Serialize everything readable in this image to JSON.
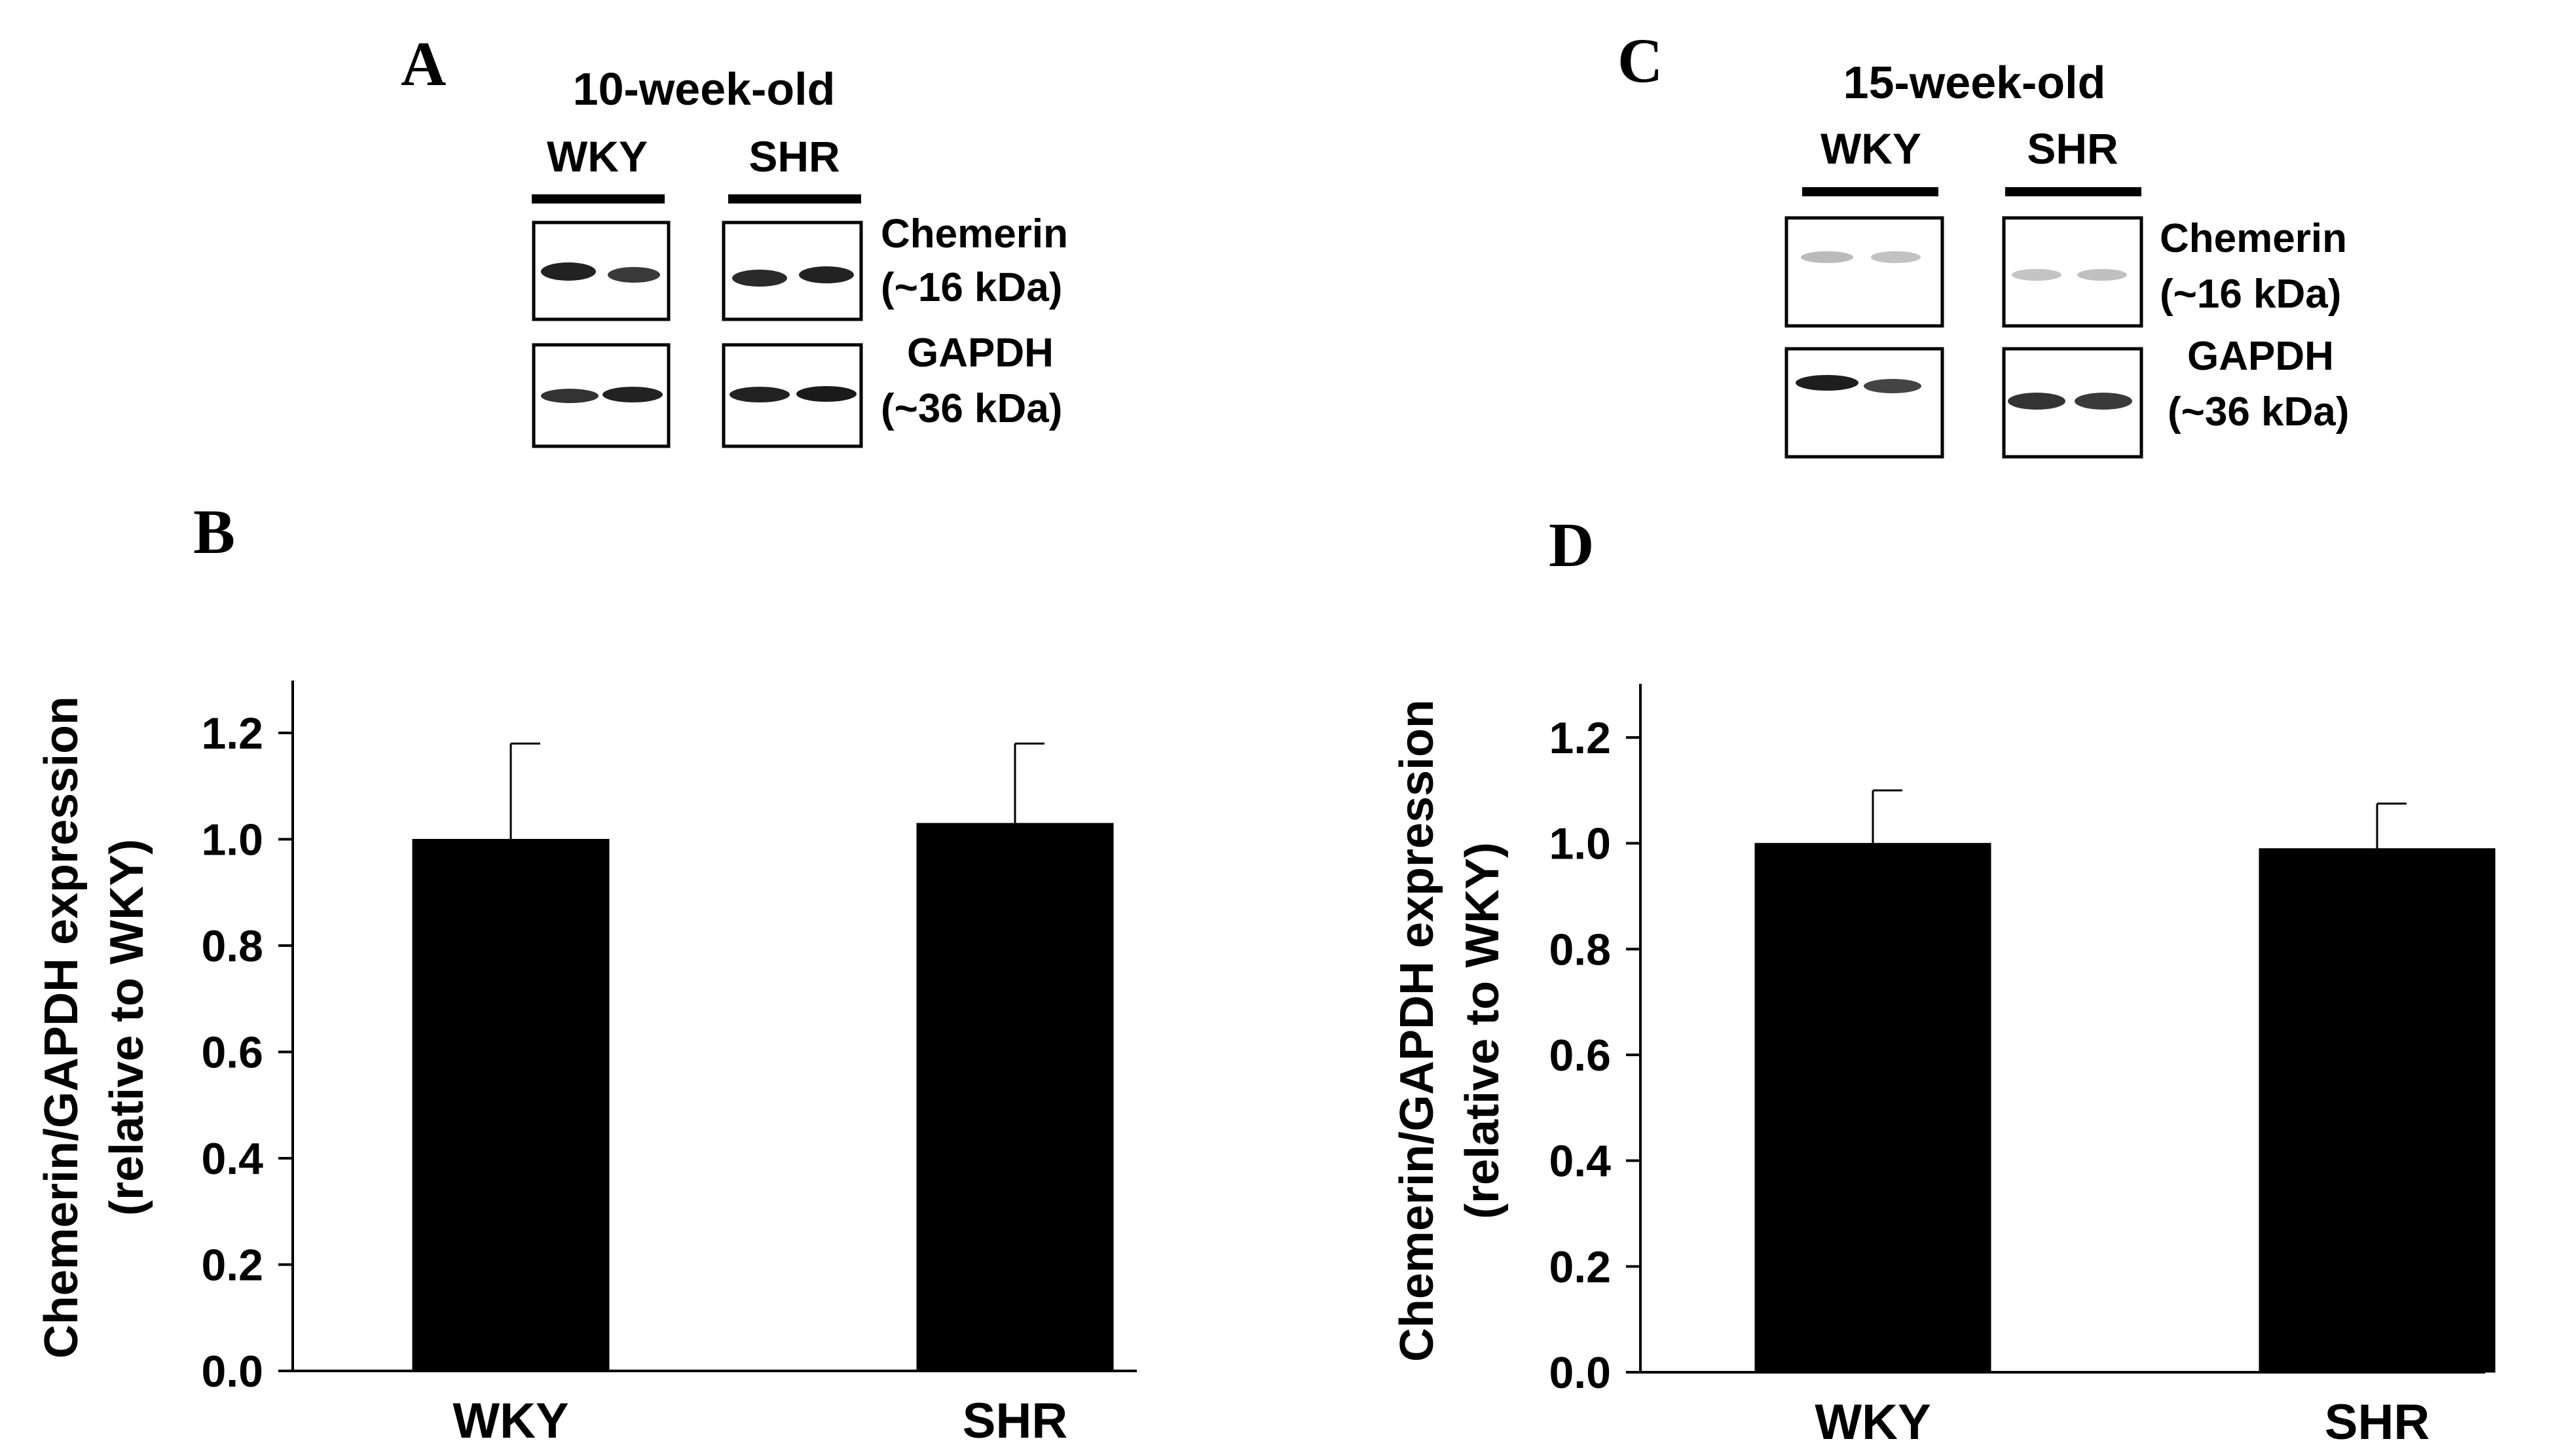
{
  "panels": {
    "A": {
      "letter": "A",
      "age_label": "10-week-old",
      "group1": "WKY",
      "group2": "SHR",
      "band1_name": "Chemerin",
      "band1_size": "(~16 kDa)",
      "band2_name": "GAPDH",
      "band2_size": "(~36 kDa)"
    },
    "C": {
      "letter": "C",
      "age_label": "15-week-old",
      "group1": "WKY",
      "group2": "SHR",
      "band1_name": "Chemerin",
      "band1_size": "(~16 kDa)",
      "band2_name": "GAPDH",
      "band2_size": "(~36 kDa)"
    },
    "B": {
      "letter": "B"
    },
    "D": {
      "letter": "D"
    }
  },
  "colors": {
    "bar": "#000000",
    "axis": "#000000",
    "background": "#ffffff"
  },
  "chart_data": [
    {
      "panel": "B",
      "type": "bar",
      "categories": [
        "WKY",
        "SHR"
      ],
      "values": [
        1.0,
        1.03
      ],
      "errors": [
        0.18,
        0.15
      ],
      "ylabel_line1": "Chemerin/GAPDH expression",
      "ylabel_line2": "(relative to WKY)",
      "ylim": [
        0.0,
        1.2
      ],
      "yticks": [
        "0.0",
        "0.2",
        "0.4",
        "0.6",
        "0.8",
        "1.0",
        "1.2"
      ],
      "grid": false
    },
    {
      "panel": "D",
      "type": "bar",
      "categories": [
        "WKY",
        "SHR"
      ],
      "values": [
        1.0,
        0.99
      ],
      "errors": [
        0.1,
        0.085
      ],
      "ylabel_line1": "Chemerin/GAPDH expression",
      "ylabel_line2": "(relative to WKY)",
      "ylim": [
        0.0,
        1.2
      ],
      "yticks": [
        "0.0",
        "0.2",
        "0.4",
        "0.6",
        "0.8",
        "1.0",
        "1.2"
      ],
      "grid": false
    }
  ]
}
